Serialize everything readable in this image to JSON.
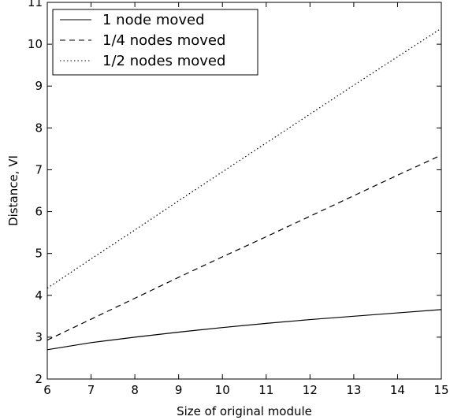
{
  "chart_data": {
    "type": "line",
    "xlabel": "Size of original module",
    "ylabel": "Distance, VI",
    "xlim": [
      6,
      15
    ],
    "ylim": [
      2,
      11
    ],
    "xticks": [
      6,
      7,
      8,
      9,
      10,
      11,
      12,
      13,
      14,
      15
    ],
    "yticks": [
      2,
      3,
      4,
      5,
      6,
      7,
      8,
      9,
      10,
      11
    ],
    "grid": false,
    "legend_position": "top-left",
    "x": [
      6,
      7,
      8,
      9,
      10,
      11,
      12,
      13,
      14,
      15
    ],
    "series": [
      {
        "name": "1 node moved",
        "style": "solid",
        "color": "#000000",
        "values": [
          2.7,
          2.87,
          3.0,
          3.12,
          3.23,
          3.33,
          3.42,
          3.5,
          3.58,
          3.66
        ]
      },
      {
        "name": "1/4 nodes moved",
        "style": "dashed",
        "color": "#000000",
        "values": [
          2.93,
          3.43,
          3.93,
          4.43,
          4.92,
          5.4,
          5.89,
          6.38,
          6.87,
          7.35
        ]
      },
      {
        "name": "1/2 nodes moved",
        "style": "dotted",
        "color": "#000000",
        "values": [
          4.17,
          4.87,
          5.56,
          6.26,
          6.95,
          7.64,
          8.33,
          9.02,
          9.7,
          10.38
        ]
      }
    ]
  }
}
